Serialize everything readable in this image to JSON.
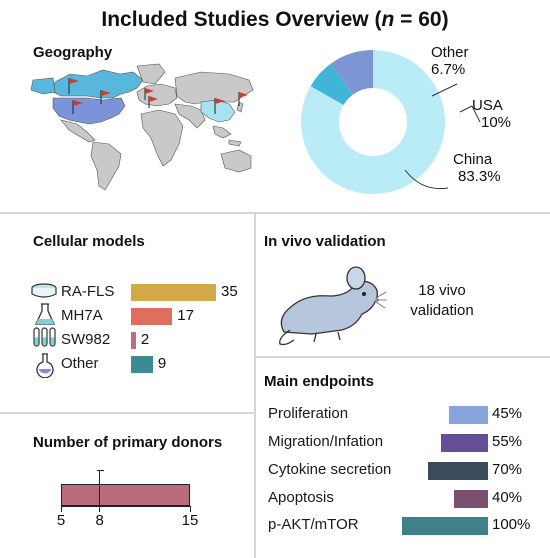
{
  "title": {
    "main": "Included Studies Overview (",
    "n_symbol": "n",
    "n_value": " = 60)"
  },
  "geography": {
    "heading": "Geography",
    "map_colors": {
      "usa": "#7b93d9",
      "canada": "#57b7dc",
      "china": "#a6e2f0",
      "land": "#c9c9c9",
      "flag": "#d23b2b"
    },
    "donut": {
      "type": "pie",
      "slices": [
        {
          "name": "China",
          "value": 83.3,
          "label": "83.3%",
          "color": "#b9ecf6"
        },
        {
          "name": "Other",
          "value": 6.7,
          "label": "6.7%",
          "color": "#3fb6d8"
        },
        {
          "name": "USA",
          "value": 10,
          "label": "10%",
          "color": "#7d96d3"
        }
      ]
    }
  },
  "cellular": {
    "heading": "Cellular models",
    "max": 35,
    "items": [
      {
        "label": "RA-FLS",
        "value": 35,
        "text": "35",
        "color": "#d1a946",
        "icon": "petri-dish-icon"
      },
      {
        "label": "MH7A",
        "value": 17,
        "text": "17",
        "color": "#e06e5f",
        "icon": "flask-icon"
      },
      {
        "label": "SW982",
        "value": 2,
        "text": "2",
        "color": "#b9707c",
        "icon": "test-tubes-icon"
      },
      {
        "label": "Other",
        "value": 9,
        "text": "9",
        "color": "#3c8a94",
        "icon": "round-flask-icon"
      }
    ]
  },
  "invivo": {
    "heading": "In vivo validation",
    "line1": "18 vivo",
    "line2": "validation",
    "icon": "mouse-icon"
  },
  "endpoints": {
    "heading": "Main endpoints",
    "items": [
      {
        "label": "Proliferation",
        "value": 45,
        "text": "45%",
        "color": "#88a4dc"
      },
      {
        "label": "Migration/Infation",
        "value": 55,
        "text": "55%",
        "color": "#634f96"
      },
      {
        "label": "Cytokine secretion",
        "value": 70,
        "text": "70%",
        "color": "#3a4b5c"
      },
      {
        "label": "Apoptosis",
        "value": 40,
        "text": "40%",
        "color": "#7a506e"
      },
      {
        "label": "p-AKT/mTOR",
        "value": 100,
        "text": "100%",
        "color": "#3f8189"
      }
    ]
  },
  "donors": {
    "heading": "Number of primary donors",
    "min": 5,
    "median": 8,
    "max": 15,
    "ticks": [
      "5",
      "8",
      "15"
    ],
    "color": "#b96d7c"
  },
  "chart_data": [
    {
      "type": "pie",
      "title": "Geography",
      "categories": [
        "China",
        "USA",
        "Other"
      ],
      "values": [
        83.3,
        10,
        6.7
      ]
    },
    {
      "type": "bar",
      "title": "Cellular models",
      "categories": [
        "RA-FLS",
        "MH7A",
        "SW982",
        "Other"
      ],
      "values": [
        35,
        17,
        2,
        9
      ]
    },
    {
      "type": "bar",
      "title": "Main endpoints",
      "categories": [
        "Proliferation",
        "Migration/Infation",
        "Cytokine secretion",
        "Apoptosis",
        "p-AKT/mTOR"
      ],
      "values": [
        45,
        55,
        70,
        40,
        100
      ]
    },
    {
      "type": "bar",
      "title": "Number of primary donors",
      "min": 5,
      "median": 8,
      "max": 15,
      "ticks": [
        5,
        8,
        15
      ]
    }
  ]
}
